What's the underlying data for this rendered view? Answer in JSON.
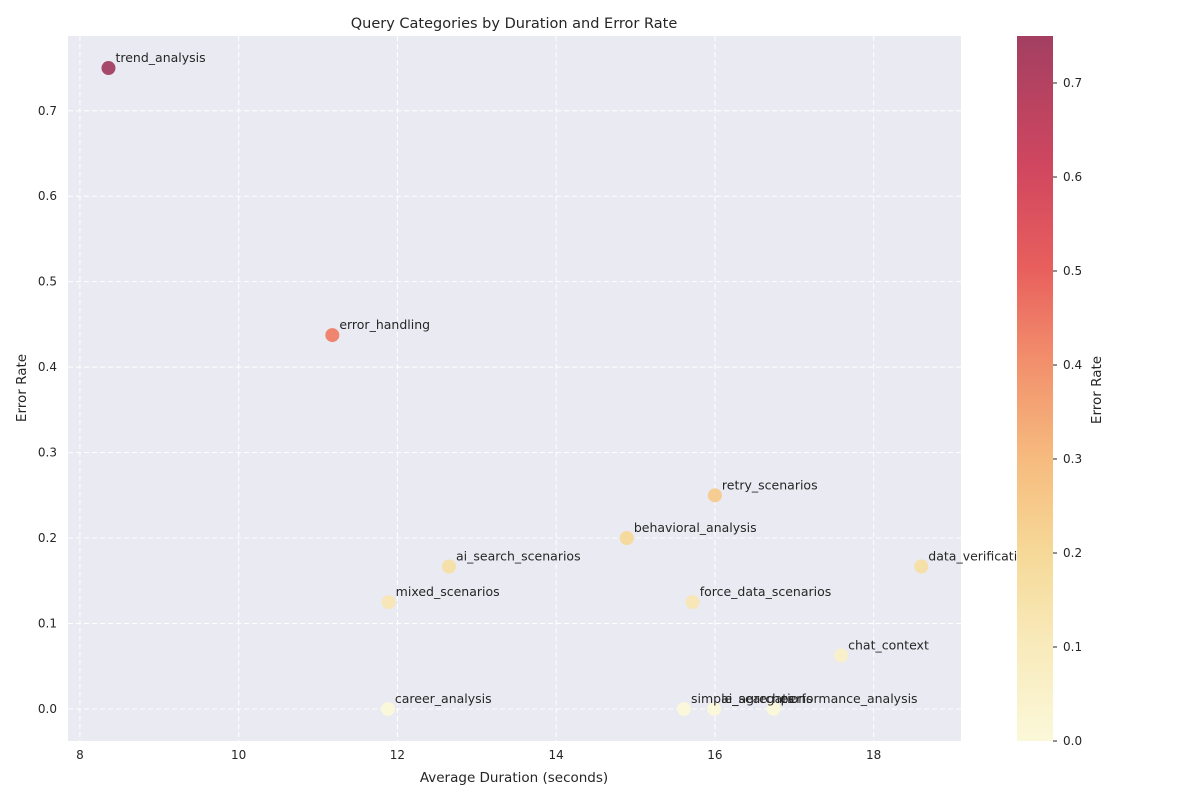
{
  "chart_data": {
    "type": "scatter",
    "title": "Query Categories by Duration and Error Rate",
    "xlabel": "Average Duration (seconds)",
    "ylabel": "Error Rate",
    "xlim": [
      7.85,
      19.1
    ],
    "ylim": [
      -0.0375,
      0.7875
    ],
    "xticks": [
      "8",
      "10",
      "12",
      "14",
      "16",
      "18"
    ],
    "yticks": [
      "0.0",
      "0.1",
      "0.2",
      "0.3",
      "0.4",
      "0.5",
      "0.6",
      "0.7"
    ],
    "grid": true,
    "colorbar": {
      "label": "Error Rate",
      "range": [
        0.0,
        0.75
      ],
      "ticks": [
        "0.0",
        "0.1",
        "0.2",
        "0.3",
        "0.4",
        "0.5",
        "0.6",
        "0.7"
      ]
    },
    "points": [
      {
        "name": "trend_analysis",
        "x": 8.36,
        "y": 0.75
      },
      {
        "name": "error_handling",
        "x": 11.18,
        "y": 0.4375
      },
      {
        "name": "retry_scenarios",
        "x": 16.0,
        "y": 0.25
      },
      {
        "name": "behavioral_analysis",
        "x": 14.89,
        "y": 0.2
      },
      {
        "name": "ai_search_scenarios",
        "x": 12.65,
        "y": 0.1667
      },
      {
        "name": "data_verification",
        "x": 18.6,
        "y": 0.1667
      },
      {
        "name": "mixed_scenarios",
        "x": 11.89,
        "y": 0.125
      },
      {
        "name": "force_data_scenarios",
        "x": 15.72,
        "y": 0.125
      },
      {
        "name": "chat_context",
        "x": 17.59,
        "y": 0.0625
      },
      {
        "name": "career_analysis",
        "x": 11.88,
        "y": 0.0
      },
      {
        "name": "simple_searches",
        "x": 15.61,
        "y": 0.0
      },
      {
        "name": "ai_agregations",
        "x": 15.99,
        "y": 0.0
      },
      {
        "name": "performance_analysis",
        "x": 16.74,
        "y": 0.0
      }
    ]
  }
}
